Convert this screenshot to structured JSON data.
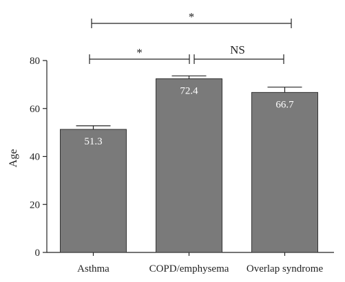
{
  "chart_data": {
    "type": "bar",
    "categories": [
      "Asthma",
      "COPD/emphysema",
      "Overlap syndrome"
    ],
    "values": [
      51.3,
      72.4,
      66.7
    ],
    "errors_upper": [
      1.5,
      1.2,
      2.2
    ],
    "data_labels": [
      "51.3",
      "72.4",
      "66.7"
    ],
    "ylabel": "Age",
    "xlabel": "",
    "ylim": [
      0,
      80
    ],
    "yticks": [
      0,
      20,
      40,
      60,
      80
    ],
    "ytick_labels": [
      "0",
      "20",
      "40",
      "60",
      "80"
    ],
    "grid": false,
    "bar_color": "#7a7a7a",
    "significance": [
      {
        "from": 0,
        "to": 2,
        "label": "*",
        "level": "top"
      },
      {
        "from": 0,
        "to": 1,
        "label": "*",
        "level": "lower"
      },
      {
        "from": 1,
        "to": 2,
        "label": "NS",
        "level": "lower"
      }
    ]
  }
}
